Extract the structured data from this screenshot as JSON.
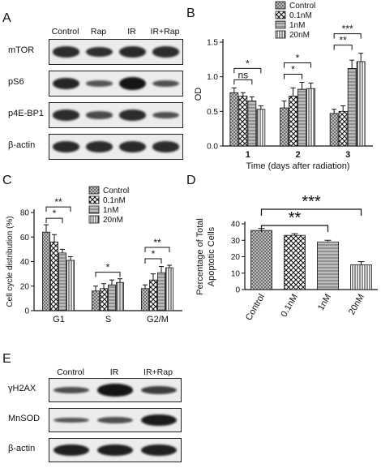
{
  "panels": {
    "A": {
      "letter": "A",
      "lanes": [
        "Control",
        "Rap",
        "IR",
        "IR+Rap"
      ],
      "rows": [
        {
          "label": "mTOR",
          "bands": [
            0.8,
            0.78,
            0.82,
            0.8
          ]
        },
        {
          "label": "pS6",
          "bands": [
            0.85,
            0.45,
            1.0,
            0.5
          ]
        },
        {
          "label": "p4E-BP1",
          "bands": [
            0.8,
            0.55,
            0.8,
            0.5
          ]
        },
        {
          "label": "β-actin",
          "bands": [
            0.82,
            0.8,
            0.82,
            0.8
          ]
        }
      ]
    },
    "E": {
      "letter": "E",
      "lanes": [
        "Control",
        "IR",
        "IR+Rap"
      ],
      "rows": [
        {
          "label": "γH2AX",
          "bands": [
            0.5,
            1.0,
            0.65
          ]
        },
        {
          "label": "MnSOD",
          "bands": [
            0.45,
            0.5,
            0.95
          ]
        },
        {
          "label": "β-actin",
          "bands": [
            0.9,
            0.9,
            0.9
          ]
        }
      ]
    }
  },
  "chart_data": [
    {
      "panel": "B",
      "type": "bar",
      "title": "",
      "xlabel": "Time (days after radiation)",
      "ylabel": "OD",
      "categories": [
        "1",
        "2",
        "3"
      ],
      "ylim": [
        0.0,
        1.5
      ],
      "yticks": [
        "0.0",
        "0.5",
        "1.0",
        "1.5"
      ],
      "series": [
        {
          "name": "Control",
          "values": [
            0.77,
            0.55,
            0.47
          ],
          "errors": [
            0.07,
            0.1,
            0.06
          ]
        },
        {
          "name": "0.1nM",
          "values": [
            0.72,
            0.72,
            0.5
          ],
          "errors": [
            0.05,
            0.12,
            0.08
          ]
        },
        {
          "name": "1nM",
          "values": [
            0.65,
            0.82,
            1.12
          ],
          "errors": [
            0.06,
            0.1,
            0.12
          ]
        },
        {
          "name": "20nM",
          "values": [
            0.53,
            0.83,
            1.22
          ],
          "errors": [
            0.05,
            0.08,
            0.12
          ]
        }
      ],
      "annotations": [
        {
          "text": "ns",
          "group": 0,
          "from": 0,
          "to": 2
        },
        {
          "text": "*",
          "group": 0,
          "from": 0,
          "to": 3
        },
        {
          "text": "*",
          "group": 1,
          "from": 0,
          "to": 2
        },
        {
          "text": "*",
          "group": 1,
          "from": 0,
          "to": 3
        },
        {
          "text": "**",
          "group": 2,
          "from": 0,
          "to": 2
        },
        {
          "text": "***",
          "group": 2,
          "from": 0,
          "to": 3
        }
      ]
    },
    {
      "panel": "C",
      "type": "bar",
      "title": "",
      "xlabel": "",
      "ylabel": "Cell cycle distribution (%)",
      "categories": [
        "G1",
        "S",
        "G2/M"
      ],
      "ylim": [
        0,
        80
      ],
      "yticks": [
        "0",
        "20",
        "40",
        "60",
        "80"
      ],
      "series": [
        {
          "name": "Control",
          "values": [
            64,
            16,
            18
          ],
          "errors": [
            6,
            4,
            3
          ]
        },
        {
          "name": "0.1nM",
          "values": [
            56,
            18,
            25
          ],
          "errors": [
            6,
            4,
            5
          ]
        },
        {
          "name": "1nM",
          "values": [
            47,
            21,
            31
          ],
          "errors": [
            3,
            4,
            5
          ]
        },
        {
          "name": "20nM",
          "values": [
            41,
            23,
            35
          ],
          "errors": [
            3,
            3,
            2
          ]
        }
      ],
      "annotations": [
        {
          "text": "*",
          "group": 0,
          "from": 0,
          "to": 2
        },
        {
          "text": "**",
          "group": 0,
          "from": 0,
          "to": 3
        },
        {
          "text": "*",
          "group": 1,
          "from": 0,
          "to": 3
        },
        {
          "text": "*",
          "group": 2,
          "from": 0,
          "to": 2
        },
        {
          "text": "**",
          "group": 2,
          "from": 0,
          "to": 3
        }
      ]
    },
    {
      "panel": "D",
      "type": "bar",
      "title": "",
      "xlabel": "",
      "ylabel": "Percentage of Total Apoptotic Cells",
      "ylabel_lines": [
        "Percentage of Total",
        "Apoptotic Cells"
      ],
      "categories": [
        "Control",
        "0.1nM",
        "1nM",
        "20nM"
      ],
      "ylim": [
        0,
        40
      ],
      "yticks": [
        "0",
        "10",
        "20",
        "30",
        "40"
      ],
      "values": [
        36,
        33,
        29,
        15
      ],
      "errors": [
        1.2,
        1.0,
        1.0,
        2.0
      ],
      "annotations": [
        {
          "text": "**",
          "from": 0,
          "to": 2
        },
        {
          "text": "***",
          "from": 0,
          "to": 3
        }
      ]
    }
  ],
  "letters": {
    "B": "B",
    "C": "C",
    "D": "D"
  }
}
